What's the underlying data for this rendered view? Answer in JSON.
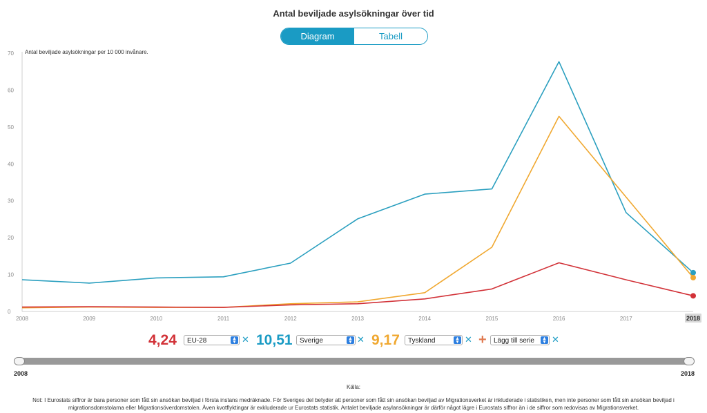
{
  "title": "Antal beviljade asylsökningar över tid",
  "view_toggle": {
    "diagram_label": "Diagram",
    "table_label": "Tabell",
    "active": "Diagram"
  },
  "chart_data": {
    "type": "line",
    "ylabel": "Antal beviljade asylsökningar per 10 000 invånare.",
    "ylim": [
      0,
      70
    ],
    "yticks": [
      "0",
      "10",
      "20",
      "30",
      "40",
      "50",
      "60",
      "70"
    ],
    "x": [
      "2008",
      "2009",
      "2010",
      "2011",
      "2012",
      "2013",
      "2014",
      "2015",
      "2016",
      "2017",
      "2018"
    ],
    "highlighted_x": "2018",
    "grid": false,
    "series": [
      {
        "name": "Sverige",
        "color": "#2a9fbf",
        "values": [
          8.6,
          7.7,
          9.1,
          9.4,
          13.1,
          25.1,
          31.8,
          33.2,
          67.7,
          26.8,
          10.51
        ]
      },
      {
        "name": "Tyskland",
        "color": "#f0a830",
        "values": [
          1.0,
          1.2,
          1.1,
          1.1,
          2.1,
          2.6,
          5.1,
          17.4,
          52.9,
          31.0,
          9.17
        ]
      },
      {
        "name": "EU-28",
        "color": "#d23238",
        "values": [
          1.2,
          1.3,
          1.2,
          1.1,
          1.8,
          2.1,
          3.4,
          6.1,
          13.2,
          8.6,
          4.24
        ]
      }
    ]
  },
  "controls": {
    "series": [
      {
        "value": "4,24",
        "country": "EU-28",
        "color": "#d23238"
      },
      {
        "value": "10,51",
        "country": "Sverige",
        "color": "#1a9bc4"
      },
      {
        "value": "9,17",
        "country": "Tyskland",
        "color": "#f0a830"
      }
    ],
    "add_series_label": "Lägg till serie"
  },
  "range_slider": {
    "start": "2008",
    "end": "2018"
  },
  "source_label": "Källa:",
  "note": "Not: I Eurostats siffror är bara personer som fått sin ansökan beviljad i första instans medräknade. För Sveriges del betyder att personer som fått sin ansökan beviljad av Migrationsverket är inkluderade i statistiken, men inte personer som fått sin ansökan beviljad i migrationsdomstolarna eller Migrationsöverdomstolen. Även kvotflyktingar är exkluderade ur Eurostats statistik. Antalet beviljade asylansökningar är därför något lägre i Eurostats siffror än i de siffror som redovisas av Migrationsverket."
}
